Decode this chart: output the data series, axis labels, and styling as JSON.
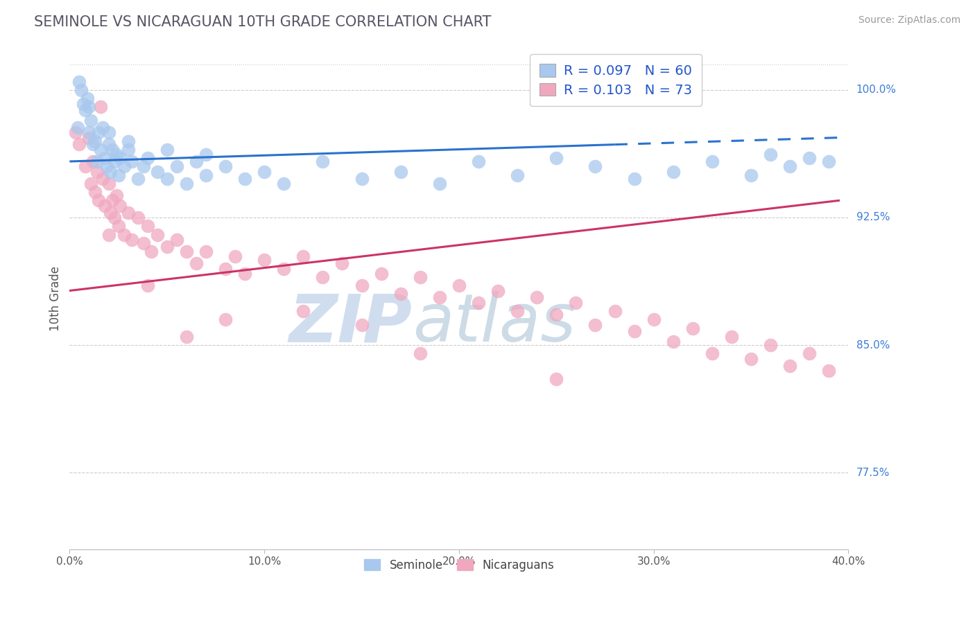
{
  "title": "SEMINOLE VS NICARAGUAN 10TH GRADE CORRELATION CHART",
  "source": "Source: ZipAtlas.com",
  "ylabel": "10th Grade",
  "xmin": 0.0,
  "xmax": 40.0,
  "ymin": 73.0,
  "ymax": 102.5,
  "yticks": [
    77.5,
    85.0,
    92.5,
    100.0
  ],
  "ytick_labels": [
    "77.5%",
    "85.0%",
    "92.5%",
    "100.0%"
  ],
  "seminole_color": "#A8C8EE",
  "nicaraguan_color": "#F0A8BF",
  "seminole_R": 0.097,
  "seminole_N": 60,
  "nicaraguan_R": 0.103,
  "nicaraguan_N": 73,
  "trend_blue": "#2A72CC",
  "trend_pink": "#CC3366",
  "legend_color": "#2255CC",
  "bg_color": "#FFFFFF",
  "seminole_points": [
    [
      0.4,
      97.8
    ],
    [
      0.5,
      100.5
    ],
    [
      0.7,
      99.2
    ],
    [
      0.8,
      98.8
    ],
    [
      0.9,
      99.5
    ],
    [
      1.0,
      97.5
    ],
    [
      1.1,
      98.2
    ],
    [
      1.2,
      96.8
    ],
    [
      1.3,
      97.0
    ],
    [
      1.4,
      95.8
    ],
    [
      1.5,
      97.5
    ],
    [
      1.6,
      96.5
    ],
    [
      1.7,
      97.8
    ],
    [
      1.8,
      96.0
    ],
    [
      1.9,
      95.5
    ],
    [
      2.0,
      96.8
    ],
    [
      2.1,
      95.2
    ],
    [
      2.2,
      96.5
    ],
    [
      2.3,
      95.8
    ],
    [
      2.4,
      96.2
    ],
    [
      2.5,
      95.0
    ],
    [
      2.6,
      96.0
    ],
    [
      2.8,
      95.5
    ],
    [
      3.0,
      96.5
    ],
    [
      3.2,
      95.8
    ],
    [
      3.5,
      94.8
    ],
    [
      3.8,
      95.5
    ],
    [
      4.0,
      96.0
    ],
    [
      4.5,
      95.2
    ],
    [
      5.0,
      94.8
    ],
    [
      5.5,
      95.5
    ],
    [
      6.0,
      94.5
    ],
    [
      6.5,
      95.8
    ],
    [
      7.0,
      95.0
    ],
    [
      8.0,
      95.5
    ],
    [
      9.0,
      94.8
    ],
    [
      10.0,
      95.2
    ],
    [
      11.0,
      94.5
    ],
    [
      13.0,
      95.8
    ],
    [
      15.0,
      94.8
    ],
    [
      17.0,
      95.2
    ],
    [
      19.0,
      94.5
    ],
    [
      21.0,
      95.8
    ],
    [
      23.0,
      95.0
    ],
    [
      25.0,
      96.0
    ],
    [
      27.0,
      95.5
    ],
    [
      29.0,
      94.8
    ],
    [
      31.0,
      95.2
    ],
    [
      33.0,
      95.8
    ],
    [
      35.0,
      95.0
    ],
    [
      36.0,
      96.2
    ],
    [
      37.0,
      95.5
    ],
    [
      38.0,
      96.0
    ],
    [
      39.0,
      95.8
    ],
    [
      0.6,
      100.0
    ],
    [
      1.0,
      99.0
    ],
    [
      2.0,
      97.5
    ],
    [
      3.0,
      97.0
    ],
    [
      5.0,
      96.5
    ],
    [
      7.0,
      96.2
    ]
  ],
  "nicaraguan_points": [
    [
      0.3,
      97.5
    ],
    [
      0.5,
      96.8
    ],
    [
      0.8,
      95.5
    ],
    [
      1.0,
      97.2
    ],
    [
      1.1,
      94.5
    ],
    [
      1.2,
      95.8
    ],
    [
      1.3,
      94.0
    ],
    [
      1.4,
      95.2
    ],
    [
      1.5,
      93.5
    ],
    [
      1.6,
      99.0
    ],
    [
      1.7,
      94.8
    ],
    [
      1.8,
      93.2
    ],
    [
      2.0,
      94.5
    ],
    [
      2.1,
      92.8
    ],
    [
      2.2,
      93.5
    ],
    [
      2.3,
      92.5
    ],
    [
      2.4,
      93.8
    ],
    [
      2.5,
      92.0
    ],
    [
      2.6,
      93.2
    ],
    [
      2.8,
      91.5
    ],
    [
      3.0,
      92.8
    ],
    [
      3.2,
      91.2
    ],
    [
      3.5,
      92.5
    ],
    [
      3.8,
      91.0
    ],
    [
      4.0,
      92.0
    ],
    [
      4.2,
      90.5
    ],
    [
      4.5,
      91.5
    ],
    [
      5.0,
      90.8
    ],
    [
      5.5,
      91.2
    ],
    [
      6.0,
      90.5
    ],
    [
      6.5,
      89.8
    ],
    [
      7.0,
      90.5
    ],
    [
      8.0,
      89.5
    ],
    [
      8.5,
      90.2
    ],
    [
      9.0,
      89.2
    ],
    [
      10.0,
      90.0
    ],
    [
      11.0,
      89.5
    ],
    [
      12.0,
      90.2
    ],
    [
      13.0,
      89.0
    ],
    [
      14.0,
      89.8
    ],
    [
      15.0,
      88.5
    ],
    [
      16.0,
      89.2
    ],
    [
      17.0,
      88.0
    ],
    [
      18.0,
      89.0
    ],
    [
      19.0,
      87.8
    ],
    [
      20.0,
      88.5
    ],
    [
      21.0,
      87.5
    ],
    [
      22.0,
      88.2
    ],
    [
      23.0,
      87.0
    ],
    [
      24.0,
      87.8
    ],
    [
      25.0,
      86.8
    ],
    [
      26.0,
      87.5
    ],
    [
      27.0,
      86.2
    ],
    [
      28.0,
      87.0
    ],
    [
      29.0,
      85.8
    ],
    [
      30.0,
      86.5
    ],
    [
      31.0,
      85.2
    ],
    [
      32.0,
      86.0
    ],
    [
      33.0,
      84.5
    ],
    [
      34.0,
      85.5
    ],
    [
      35.0,
      84.2
    ],
    [
      36.0,
      85.0
    ],
    [
      37.0,
      83.8
    ],
    [
      38.0,
      84.5
    ],
    [
      39.0,
      83.5
    ],
    [
      4.0,
      88.5
    ],
    [
      8.0,
      86.5
    ],
    [
      12.0,
      87.0
    ],
    [
      18.0,
      84.5
    ],
    [
      25.0,
      83.0
    ],
    [
      2.0,
      91.5
    ],
    [
      6.0,
      85.5
    ],
    [
      15.0,
      86.2
    ]
  ],
  "seminole_trend_x": [
    0.0,
    39.5
  ],
  "seminole_trend_y": [
    95.8,
    97.2
  ],
  "seminole_solid_end_x": 28.0,
  "nicaraguan_trend_x": [
    0.0,
    39.5
  ],
  "nicaraguan_trend_y": [
    88.2,
    93.5
  ],
  "watermark_zip": "ZIP",
  "watermark_atlas": "atlas"
}
